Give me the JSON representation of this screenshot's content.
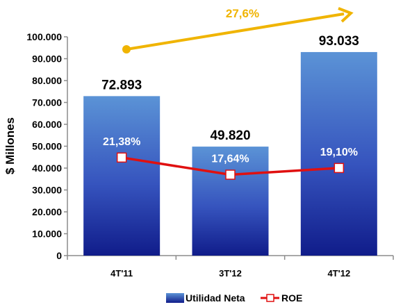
{
  "chart_data": {
    "type": "bar",
    "categories": [
      "4T'11",
      "3T'12",
      "4T'12"
    ],
    "series": [
      {
        "name": "Utilidad Neta",
        "values": [
          72893,
          49820,
          93033
        ],
        "labels": [
          "72.893",
          "49.820",
          "93.033"
        ],
        "color": "#2e49b0"
      },
      {
        "name": "ROE",
        "type": "line",
        "values_pct": [
          21.38,
          17.64,
          19.1
        ],
        "labels": [
          "21,38%",
          "17,64%",
          "19,10%"
        ],
        "color": "#e01010"
      }
    ],
    "ylabel": "$ Millones",
    "ylim": [
      0,
      100000
    ],
    "yticks": [
      0,
      10000,
      20000,
      30000,
      40000,
      50000,
      60000,
      70000,
      80000,
      90000,
      100000
    ],
    "ytick_labels": [
      "0",
      "10.000",
      "20.000",
      "30.000",
      "40.000",
      "50.000",
      "60.000",
      "70.000",
      "80.000",
      "90.000",
      "100.000"
    ],
    "annotation": {
      "text": "27,6%",
      "color": "#f0b400"
    },
    "legend": "bottom",
    "grid": false
  }
}
